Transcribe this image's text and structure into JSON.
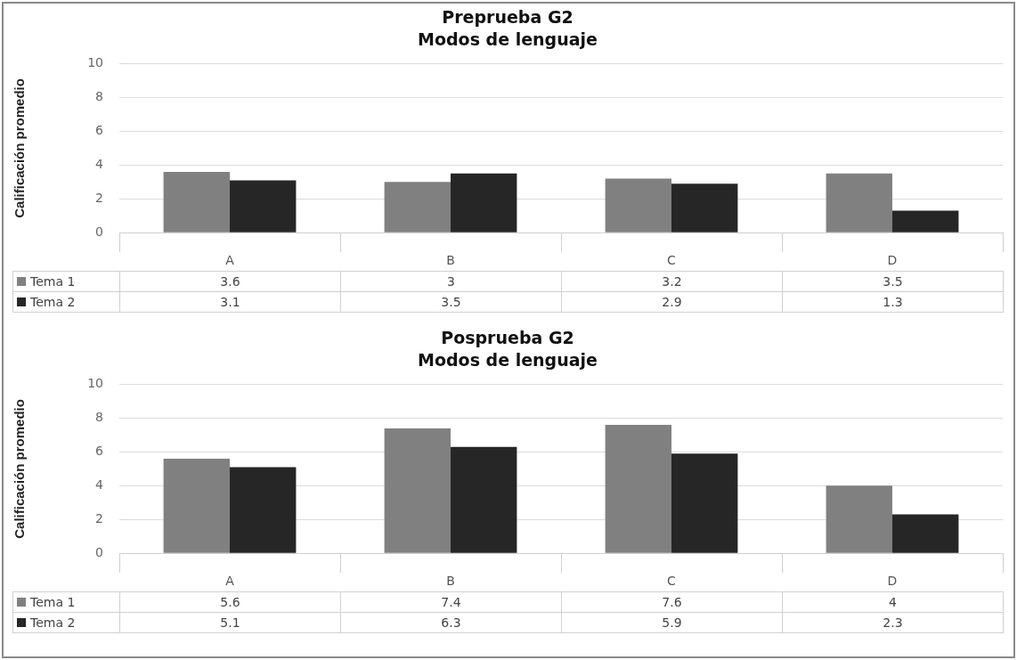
{
  "chart_data": [
    {
      "type": "bar",
      "title": "Preprueba G2",
      "subtitle": "Modos de lenguaje",
      "ylabel": "Calificación promedio",
      "categories": [
        "A",
        "B",
        "C",
        "D"
      ],
      "series": [
        {
          "name": "Tema 1",
          "color": "#808080",
          "values": [
            3.6,
            3,
            3.2,
            3.5
          ]
        },
        {
          "name": "Tema 2",
          "color": "#262626",
          "values": [
            3.1,
            3.5,
            2.9,
            1.3
          ]
        }
      ],
      "ylim": [
        0,
        10
      ],
      "yticks": [
        0,
        2,
        4,
        6,
        8,
        10
      ],
      "grid": "y",
      "data_labels": true,
      "legend": "bottom left"
    },
    {
      "type": "bar",
      "title": "Posprueba G2",
      "subtitle": "Modos de lenguaje",
      "ylabel": "Calificación promedio",
      "categories": [
        "A",
        "B",
        "C",
        "D"
      ],
      "series": [
        {
          "name": "Tema 1",
          "color": "#808080",
          "values": [
            5.6,
            7.4,
            7.6,
            4
          ]
        },
        {
          "name": "Tema 2",
          "color": "#262626",
          "values": [
            5.1,
            6.3,
            5.9,
            2.3
          ]
        }
      ],
      "ylim": [
        0,
        10
      ],
      "yticks": [
        0,
        2,
        4,
        6,
        8,
        10
      ],
      "grid": "y",
      "data_labels": true,
      "legend": "bottom left"
    }
  ]
}
